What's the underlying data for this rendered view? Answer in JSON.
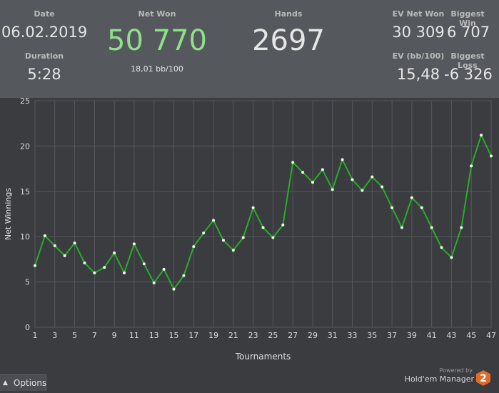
{
  "stats": {
    "date_label": "Date",
    "date_value": "06.02.2019",
    "duration_label": "Duration",
    "duration_value": "5:28",
    "net_won_label": "Net Won",
    "net_won_value": "50 770",
    "net_won_sub": "18,01 bb/100",
    "hands_label": "Hands",
    "hands_value": "2697",
    "ev_net_won_label": "EV Net Won",
    "ev_net_won_value": "30 309",
    "biggest_win_label": "Biggest Win",
    "biggest_win_value": "6 707",
    "ev_bb100_label": "EV (bb/100)",
    "ev_bb100_value": "15,48",
    "biggest_loss_label": "Biggest Loss",
    "biggest_loss_value": "-6 326",
    "net_won_color": "#8ee08a"
  },
  "footer": {
    "options_label": "Options",
    "powered_by": "Powered by",
    "brand": "Hold'em Manager",
    "logo_number": "2"
  },
  "colors": {
    "line": "#2bab2b",
    "point": "#e8ffe8",
    "grid": "#55585c",
    "logo": "#e26b2a"
  },
  "chart_data": {
    "type": "line",
    "xlabel": "Tournaments",
    "ylabel": "Net Winnings",
    "xlim": [
      1,
      47
    ],
    "ylim": [
      0,
      25
    ],
    "x_ticks": [
      1,
      3,
      5,
      7,
      9,
      11,
      13,
      15,
      17,
      19,
      21,
      23,
      25,
      27,
      29,
      31,
      33,
      35,
      37,
      39,
      41,
      43,
      45,
      47
    ],
    "y_ticks": [
      0,
      5,
      10,
      15,
      20,
      25
    ],
    "grid": true,
    "x": [
      1,
      2,
      3,
      4,
      5,
      6,
      7,
      8,
      9,
      10,
      11,
      12,
      13,
      14,
      15,
      16,
      17,
      18,
      19,
      20,
      21,
      22,
      23,
      24,
      25,
      26,
      27,
      28,
      29,
      30,
      31,
      32,
      33,
      34,
      35,
      36,
      37,
      38,
      39,
      40,
      41,
      42,
      43,
      44,
      45,
      46,
      47
    ],
    "values": [
      6.8,
      10.1,
      9.0,
      7.9,
      9.3,
      7.1,
      6.0,
      6.6,
      8.2,
      6.0,
      9.2,
      7.0,
      4.9,
      6.4,
      4.2,
      5.7,
      8.9,
      10.4,
      11.8,
      9.6,
      8.5,
      9.9,
      13.2,
      11.0,
      9.9,
      11.3,
      18.2,
      17.1,
      16.0,
      17.4,
      15.2,
      18.5,
      16.3,
      15.1,
      16.6,
      15.5,
      13.2,
      11.0,
      14.3,
      13.2,
      11.0,
      8.8,
      7.7,
      11.0,
      17.8,
      21.2,
      18.9
    ]
  }
}
